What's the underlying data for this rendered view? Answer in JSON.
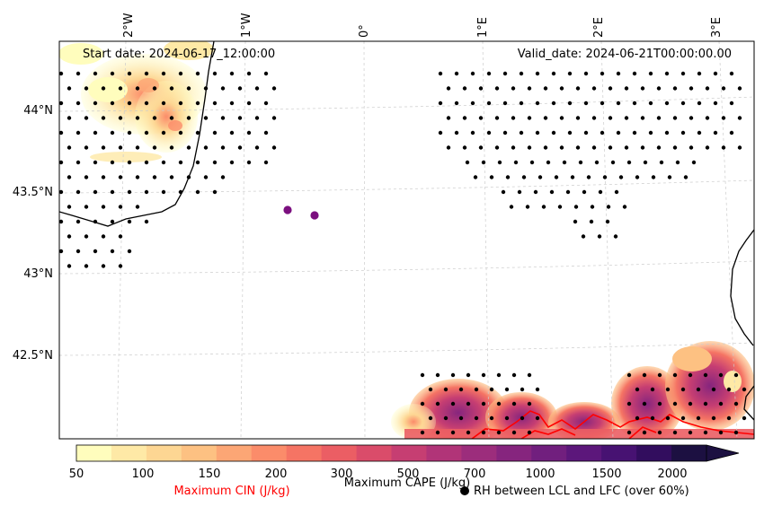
{
  "map": {
    "start_date": "Start date: 2024-06-17_12:00:00",
    "valid_date": "Valid_date: 2024-06-21T00:00:00.00",
    "lon_labels": [
      "2°W",
      "1°W",
      "0°",
      "1°E",
      "2°E",
      "3°E"
    ],
    "lat_labels": [
      "44°N",
      "43.5°N",
      "43°N",
      "42.5°N"
    ],
    "markers": [
      {
        "name": "marker-1",
        "lon": -0.65,
        "lat": 43.39
      },
      {
        "name": "marker-2",
        "lon": -0.43,
        "lat": 43.36
      }
    ],
    "colors": {
      "marker": "#7b0f7f",
      "coast": "#000000",
      "cin_contour": "#ff0000",
      "dots": "#000000"
    }
  },
  "colorbar": {
    "tick_labels": [
      "50",
      "100",
      "150",
      "200",
      "300",
      "500",
      "700",
      "1000",
      "1500",
      "2000"
    ],
    "colors": [
      "#fffdbd",
      "#fee9a6",
      "#fdd693",
      "#fdc182",
      "#fca675",
      "#fb8c6a",
      "#f57464",
      "#eb5e64",
      "#da4c6a",
      "#c63e72",
      "#b13478",
      "#9c2d7c",
      "#86257e",
      "#711f7e",
      "#5c177b",
      "#471272",
      "#320d5e",
      "#1c1041"
    ],
    "title": "Maximum CAPE (J/kg)",
    "cin_label": "Maximum CIN (J/kg)",
    "rh_label": "RH between LCL and LFC (over 60%)"
  }
}
